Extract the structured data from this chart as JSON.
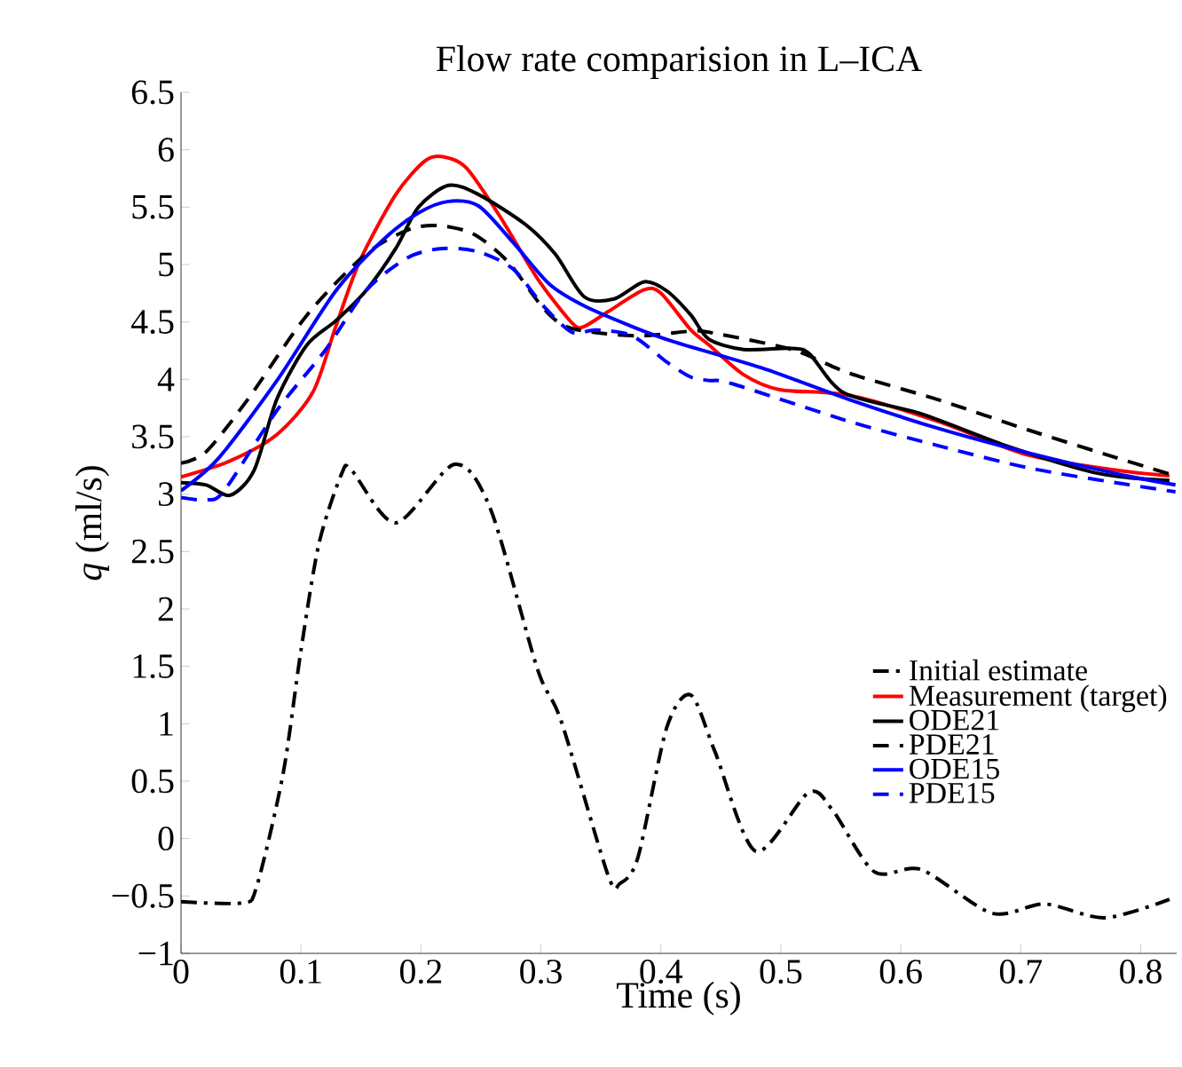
{
  "chart_data": {
    "type": "line",
    "title": "Flow rate comparision in L–ICA",
    "xlabel": "Time (s)",
    "ylabel": "*q* (ml/s)",
    "xlim": [
      0,
      0.83
    ],
    "ylim": [
      -1,
      6.5
    ],
    "xticks": [
      0,
      0.1,
      0.2,
      0.3,
      0.4,
      0.5,
      0.6,
      0.7,
      0.8
    ],
    "yticks": [
      {
        "value": -1,
        "label": "−1"
      },
      {
        "value": -0.5,
        "label": "−0.5"
      },
      0,
      0.5,
      1,
      1.5,
      2,
      2.5,
      3,
      3.5,
      4,
      4.5,
      5,
      5.5,
      6,
      6.5
    ],
    "grid": false,
    "legend": "right",
    "marker": "none",
    "series": [
      {
        "name": "Initial estimate",
        "color": "#000000",
        "line_style": "dashdot",
        "x": [
          0,
          0.051,
          0.063,
          0.085,
          0.1,
          0.115,
          0.134,
          0.142,
          0.179,
          0.228,
          0.258,
          0.297,
          0.317,
          0.356,
          0.366,
          0.381,
          0.405,
          0.425,
          0.445,
          0.479,
          0.523,
          0.543,
          0.578,
          0.617,
          0.676,
          0.72,
          0.77,
          0.824
        ],
        "values": [
          -0.55,
          -0.56,
          -0.42,
          0.56,
          1.64,
          2.57,
          3.18,
          3.21,
          2.75,
          3.26,
          2.87,
          1.48,
          1.02,
          -0.32,
          -0.39,
          -0.16,
          0.97,
          1.25,
          0.76,
          -0.11,
          0.4,
          0.25,
          -0.29,
          -0.27,
          -0.65,
          -0.57,
          -0.69,
          -0.53
        ]
      },
      {
        "name": "Measurement (target)",
        "color": "#ff0000",
        "line_style": "solid",
        "x": [
          0,
          0.041,
          0.08,
          0.11,
          0.129,
          0.149,
          0.179,
          0.203,
          0.218,
          0.238,
          0.267,
          0.297,
          0.326,
          0.336,
          0.356,
          0.386,
          0.4,
          0.425,
          0.44,
          0.469,
          0.499,
          0.558,
          0.632,
          0.706,
          0.779,
          0.824
        ],
        "values": [
          3.15,
          3.29,
          3.52,
          3.89,
          4.46,
          5.03,
          5.61,
          5.9,
          5.94,
          5.84,
          5.4,
          4.88,
          4.49,
          4.46,
          4.59,
          4.78,
          4.75,
          4.43,
          4.3,
          4.04,
          3.91,
          3.86,
          3.63,
          3.34,
          3.21,
          3.16
        ]
      },
      {
        "name": "ODE21",
        "color": "#000000",
        "line_style": "solid",
        "x": [
          0,
          0.021,
          0.041,
          0.061,
          0.08,
          0.105,
          0.129,
          0.154,
          0.179,
          0.198,
          0.223,
          0.248,
          0.287,
          0.312,
          0.336,
          0.361,
          0.386,
          0.405,
          0.425,
          0.44,
          0.469,
          0.509,
          0.524,
          0.553,
          0.617,
          0.691,
          0.765,
          0.824
        ],
        "values": [
          3.1,
          3.08,
          2.99,
          3.21,
          3.83,
          4.3,
          4.51,
          4.77,
          5.14,
          5.5,
          5.69,
          5.61,
          5.35,
          5.09,
          4.72,
          4.7,
          4.85,
          4.77,
          4.56,
          4.35,
          4.26,
          4.27,
          4.22,
          3.88,
          3.7,
          3.41,
          3.18,
          3.12
        ]
      },
      {
        "name": "PDE21",
        "color": "#000000",
        "line_style": "dashed",
        "x": [
          0,
          0.021,
          0.056,
          0.105,
          0.154,
          0.189,
          0.213,
          0.243,
          0.272,
          0.302,
          0.321,
          0.351,
          0.386,
          0.425,
          0.44,
          0.509,
          0.558,
          0.632,
          0.706,
          0.779,
          0.829
        ],
        "values": [
          3.27,
          3.37,
          3.83,
          4.56,
          5.09,
          5.3,
          5.34,
          5.27,
          5.03,
          4.62,
          4.46,
          4.4,
          4.38,
          4.42,
          4.41,
          4.26,
          4.05,
          3.82,
          3.56,
          3.32,
          3.16
        ]
      },
      {
        "name": "ODE15",
        "color": "#0000ff",
        "line_style": "solid",
        "x": [
          0,
          0.031,
          0.08,
          0.129,
          0.169,
          0.198,
          0.223,
          0.248,
          0.277,
          0.307,
          0.336,
          0.376,
          0.41,
          0.484,
          0.558,
          0.632,
          0.706,
          0.779,
          0.829
        ],
        "values": [
          3.03,
          3.31,
          3.99,
          4.77,
          5.22,
          5.45,
          5.55,
          5.51,
          5.19,
          4.83,
          4.64,
          4.46,
          4.33,
          4.1,
          3.82,
          3.57,
          3.36,
          3.18,
          3.08
        ]
      },
      {
        "name": "PDE15",
        "color": "#0000ff",
        "line_style": "dashed",
        "x": [
          0,
          0.021,
          0.036,
          0.08,
          0.12,
          0.154,
          0.189,
          0.218,
          0.248,
          0.277,
          0.302,
          0.326,
          0.346,
          0.376,
          0.405,
          0.425,
          0.44,
          0.46,
          0.558,
          0.632,
          0.706,
          0.779,
          0.829
        ],
        "values": [
          2.97,
          2.95,
          3.03,
          3.73,
          4.25,
          4.77,
          5.06,
          5.14,
          5.11,
          4.96,
          4.64,
          4.41,
          4.43,
          4.38,
          4.15,
          4.02,
          3.99,
          3.96,
          3.63,
          3.42,
          3.23,
          3.1,
          3.02
        ]
      }
    ]
  }
}
